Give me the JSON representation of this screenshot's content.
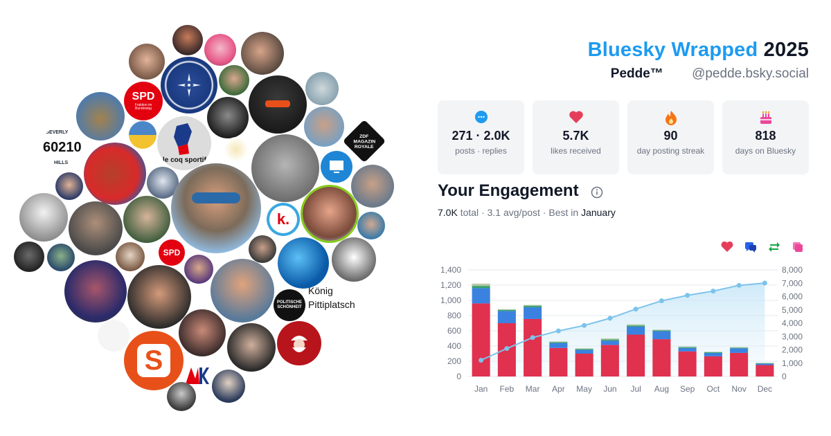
{
  "header": {
    "title_brand": "Bluesky Wrapped",
    "title_year": "2025",
    "display_name": "Pedde™",
    "handle": "@pedde.bsky.social"
  },
  "stats": [
    {
      "icon": "chat-bubble-icon",
      "value": "271 · 2.0K",
      "label": "posts · replies",
      "color": "#1d9bf0"
    },
    {
      "icon": "heart-icon",
      "value": "5.7K",
      "label": "likes received",
      "color": "#e53e5a"
    },
    {
      "icon": "flame-icon",
      "value": "90",
      "label": "day posting streak",
      "color": "#f97316"
    },
    {
      "icon": "cake-icon",
      "value": "818",
      "label": "days on Bluesky",
      "color": "#ec4899"
    }
  ],
  "engagement": {
    "heading": "Your Engagement",
    "total_value": "7.0K",
    "total_word": "total",
    "avg": "3.1 avg/post",
    "best_prefix": "Best in",
    "best_month": "January",
    "sep": "·"
  },
  "legend": [
    {
      "icon": "heart-icon",
      "color": "#e53e5a"
    },
    {
      "icon": "reply-icon",
      "color": "#2563eb"
    },
    {
      "icon": "repost-icon",
      "color": "#16a34a"
    },
    {
      "icon": "quote-icon",
      "color": "#ec4899"
    }
  ],
  "avatars": {
    "broken_image_alt": "König Pittiplatsch",
    "labels": {
      "spd1_line1": "SPD",
      "spd1_line2": "Fraktion im Bundestag",
      "spd2": "SPD",
      "lecoq": "le coq sportif",
      "beverly_num": "60210",
      "beverly_top": "BEVERLY",
      "beverly_bottom": "HILLS",
      "zdf": "ZDF MAGAZIN ROYALE",
      "ps": "POLITISCHE SCHÖNHEIT",
      "k": "k.",
      "s": "S"
    }
  },
  "chart_data": {
    "type": "bar",
    "stacked": true,
    "categories": [
      "Jan",
      "Feb",
      "Mar",
      "Apr",
      "May",
      "Jun",
      "Jul",
      "Aug",
      "Sep",
      "Oct",
      "Nov",
      "Dec"
    ],
    "series": [
      {
        "name": "likes",
        "color": "#e0314f",
        "values": [
          960,
          700,
          755,
          375,
          300,
          415,
          550,
          490,
          330,
          265,
          310,
          150
        ]
      },
      {
        "name": "replies",
        "color": "#3b82e0",
        "values": [
          200,
          160,
          155,
          65,
          50,
          55,
          105,
          105,
          45,
          45,
          60,
          20
        ]
      },
      {
        "name": "reposts",
        "color": "#37a16b",
        "values": [
          30,
          15,
          20,
          10,
          10,
          15,
          15,
          10,
          10,
          8,
          8,
          5
        ]
      },
      {
        "name": "quotes",
        "color": "#b6c9a6",
        "values": [
          30,
          10,
          10,
          10,
          10,
          15,
          15,
          10,
          10,
          7,
          7,
          5
        ]
      }
    ],
    "cumulative": {
      "color": "#7cc3ec",
      "values": [
        1220,
        2100,
        2920,
        3420,
        3830,
        4370,
        5060,
        5680,
        6090,
        6410,
        6840,
        7010
      ]
    },
    "ylim_left": [
      0,
      1400
    ],
    "yticks_left": [
      "0",
      "200",
      "400",
      "600",
      "800",
      "1,000",
      "1,200",
      "1,400"
    ],
    "ylim_right": [
      0,
      8000
    ],
    "yticks_right": [
      "0",
      "1,000",
      "2,000",
      "3,000",
      "4,000",
      "5,000",
      "6,000",
      "7,000",
      "8,000"
    ],
    "grid": true
  }
}
